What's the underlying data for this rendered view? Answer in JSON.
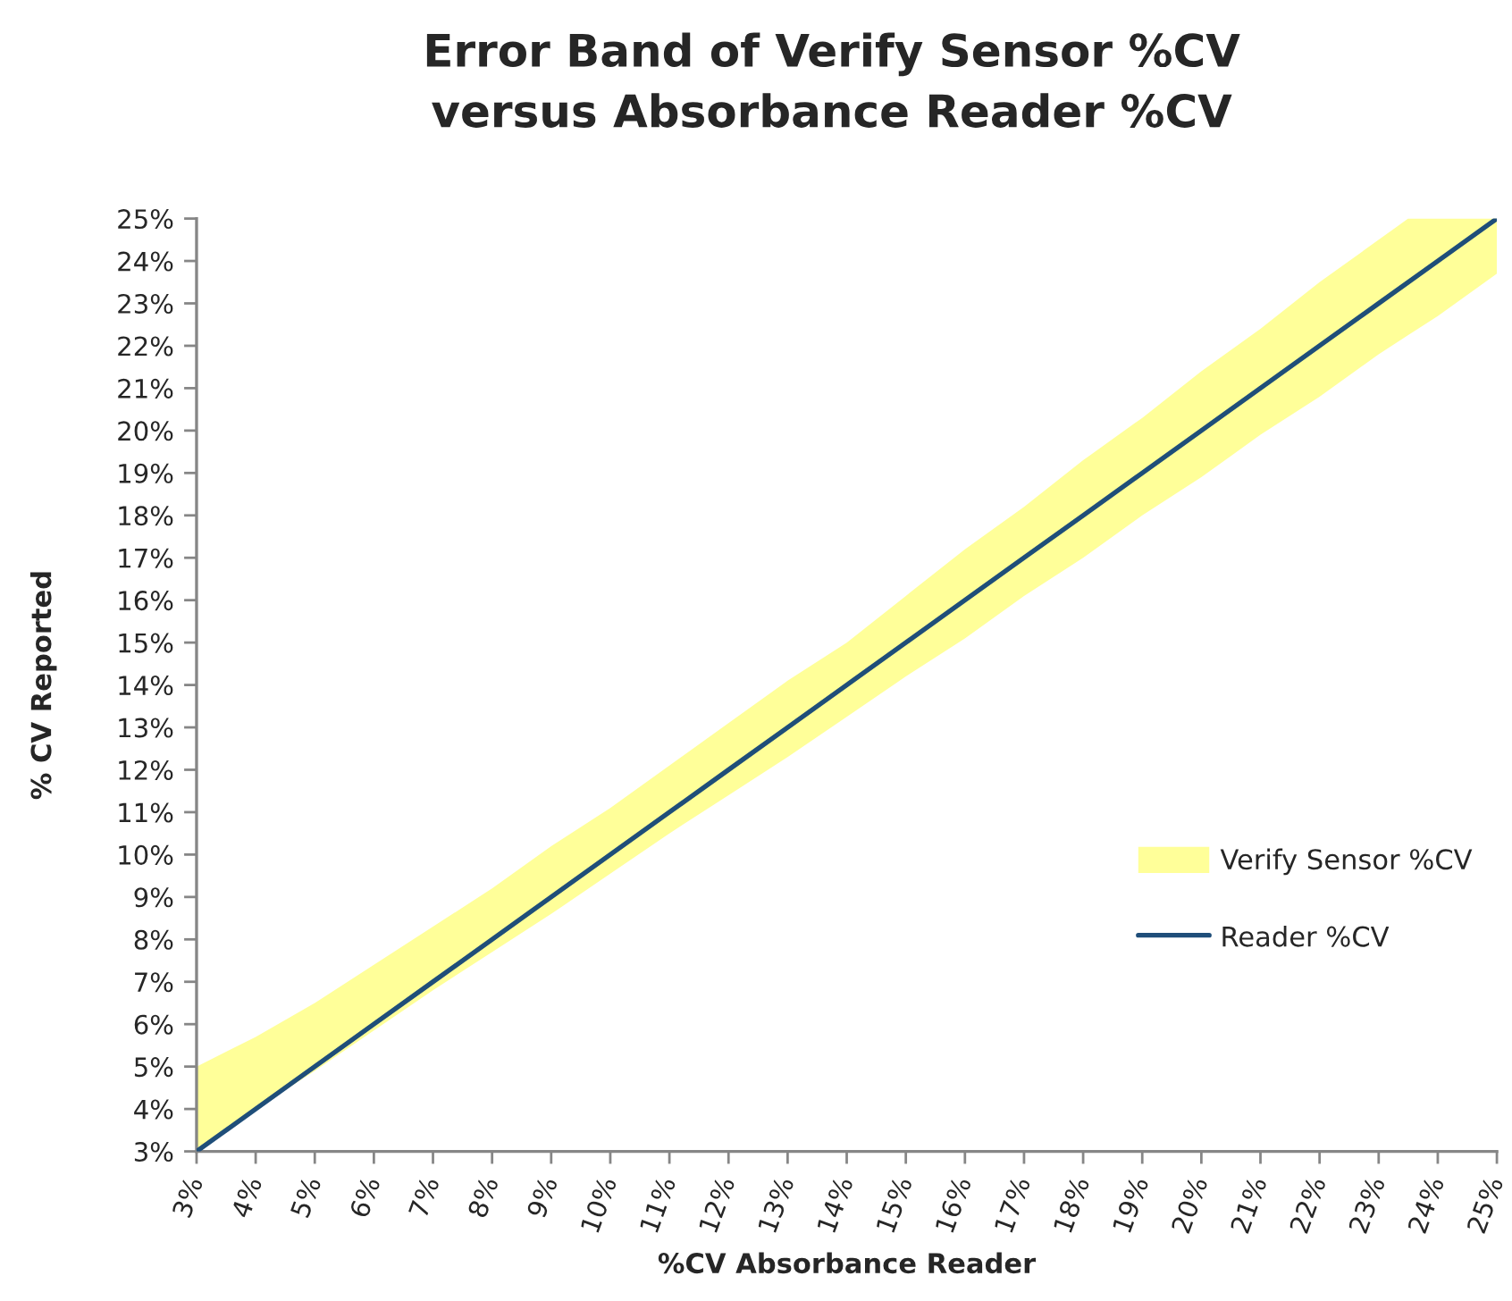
{
  "chart_data": {
    "type": "line",
    "title": "Error Band of Verify Sensor %CV\nversus Absorbance Reader %CV",
    "xlabel": "%CV Absorbance Reader",
    "ylabel": "% CV Reported",
    "x": [
      3,
      4,
      5,
      6,
      7,
      8,
      9,
      10,
      11,
      12,
      13,
      14,
      15,
      16,
      17,
      18,
      19,
      20,
      21,
      22,
      23,
      24,
      25
    ],
    "series": [
      {
        "name": "Verify Sensor %CV",
        "type": "area",
        "color": "#ffff99",
        "x": [
          3,
          4,
          5,
          6,
          7,
          8,
          9,
          10,
          11,
          12,
          13,
          14,
          15,
          16,
          17,
          18,
          19,
          20,
          21,
          22,
          23,
          23.5,
          24,
          25
        ],
        "values": [
          null,
          null,
          null,
          null,
          null,
          null,
          null,
          null,
          null,
          null,
          null,
          null,
          null,
          null,
          null,
          null,
          null,
          null,
          null,
          null,
          null,
          null,
          null,
          null
        ],
        "lower": [
          3.0,
          4.0,
          4.9,
          5.85,
          6.8,
          7.7,
          8.6,
          9.55,
          10.5,
          11.4,
          12.3,
          13.25,
          14.2,
          15.1,
          16.1,
          17.0,
          18.0,
          18.9,
          19.9,
          20.8,
          21.8,
          22.25,
          22.7,
          23.7
        ],
        "upper": [
          5.0,
          5.7,
          6.5,
          7.4,
          8.3,
          9.2,
          10.2,
          11.1,
          12.1,
          13.1,
          14.1,
          15.0,
          16.1,
          17.2,
          18.2,
          19.3,
          20.3,
          21.4,
          22.4,
          23.5,
          24.5,
          25,
          25,
          25
        ]
      },
      {
        "name": "Reader %CV",
        "color": "#1f4e79",
        "values": [
          3,
          4,
          5,
          6,
          7,
          8,
          9,
          10,
          11,
          12,
          13,
          14,
          15,
          16,
          17,
          18,
          19,
          20,
          21,
          22,
          23,
          24,
          25
        ]
      }
    ],
    "xlim": [
      3,
      25
    ],
    "ylim": [
      3,
      25
    ],
    "xticks": [
      {
        "value": 3,
        "label": "3%"
      },
      {
        "value": 4,
        "label": "4%"
      },
      {
        "value": 5,
        "label": "5%"
      },
      {
        "value": 6,
        "label": "6%"
      },
      {
        "value": 7,
        "label": "7%"
      },
      {
        "value": 8,
        "label": "8%"
      },
      {
        "value": 9,
        "label": "9%"
      },
      {
        "value": 10,
        "label": "10%"
      },
      {
        "value": 11,
        "label": "11%"
      },
      {
        "value": 12,
        "label": "12%"
      },
      {
        "value": 13,
        "label": "13%"
      },
      {
        "value": 14,
        "label": "14%"
      },
      {
        "value": 15,
        "label": "15%"
      },
      {
        "value": 16,
        "label": "16%"
      },
      {
        "value": 17,
        "label": "17%"
      },
      {
        "value": 18,
        "label": "18%"
      },
      {
        "value": 19,
        "label": "19%"
      },
      {
        "value": 20,
        "label": "20%"
      },
      {
        "value": 21,
        "label": "21%"
      },
      {
        "value": 22,
        "label": "22%"
      },
      {
        "value": 23,
        "label": "23%"
      },
      {
        "value": 24,
        "label": "24%"
      },
      {
        "value": 25,
        "label": "25%"
      }
    ],
    "yticks": [
      {
        "value": 3,
        "label": "3%"
      },
      {
        "value": 4,
        "label": "4%"
      },
      {
        "value": 5,
        "label": "5%"
      },
      {
        "value": 6,
        "label": "6%"
      },
      {
        "value": 7,
        "label": "7%"
      },
      {
        "value": 8,
        "label": "8%"
      },
      {
        "value": 9,
        "label": "9%"
      },
      {
        "value": 10,
        "label": "10%"
      },
      {
        "value": 11,
        "label": "11%"
      },
      {
        "value": 12,
        "label": "12%"
      },
      {
        "value": 13,
        "label": "13%"
      },
      {
        "value": 14,
        "label": "14%"
      },
      {
        "value": 15,
        "label": "15%"
      },
      {
        "value": 16,
        "label": "16%"
      },
      {
        "value": 17,
        "label": "17%"
      },
      {
        "value": 18,
        "label": "18%"
      },
      {
        "value": 19,
        "label": "19%"
      },
      {
        "value": 20,
        "label": "20%"
      },
      {
        "value": 21,
        "label": "21%"
      },
      {
        "value": 22,
        "label": "22%"
      },
      {
        "value": 23,
        "label": "23%"
      },
      {
        "value": 24,
        "label": "24%"
      },
      {
        "value": 25,
        "label": "25%"
      }
    ],
    "legend": "right"
  }
}
